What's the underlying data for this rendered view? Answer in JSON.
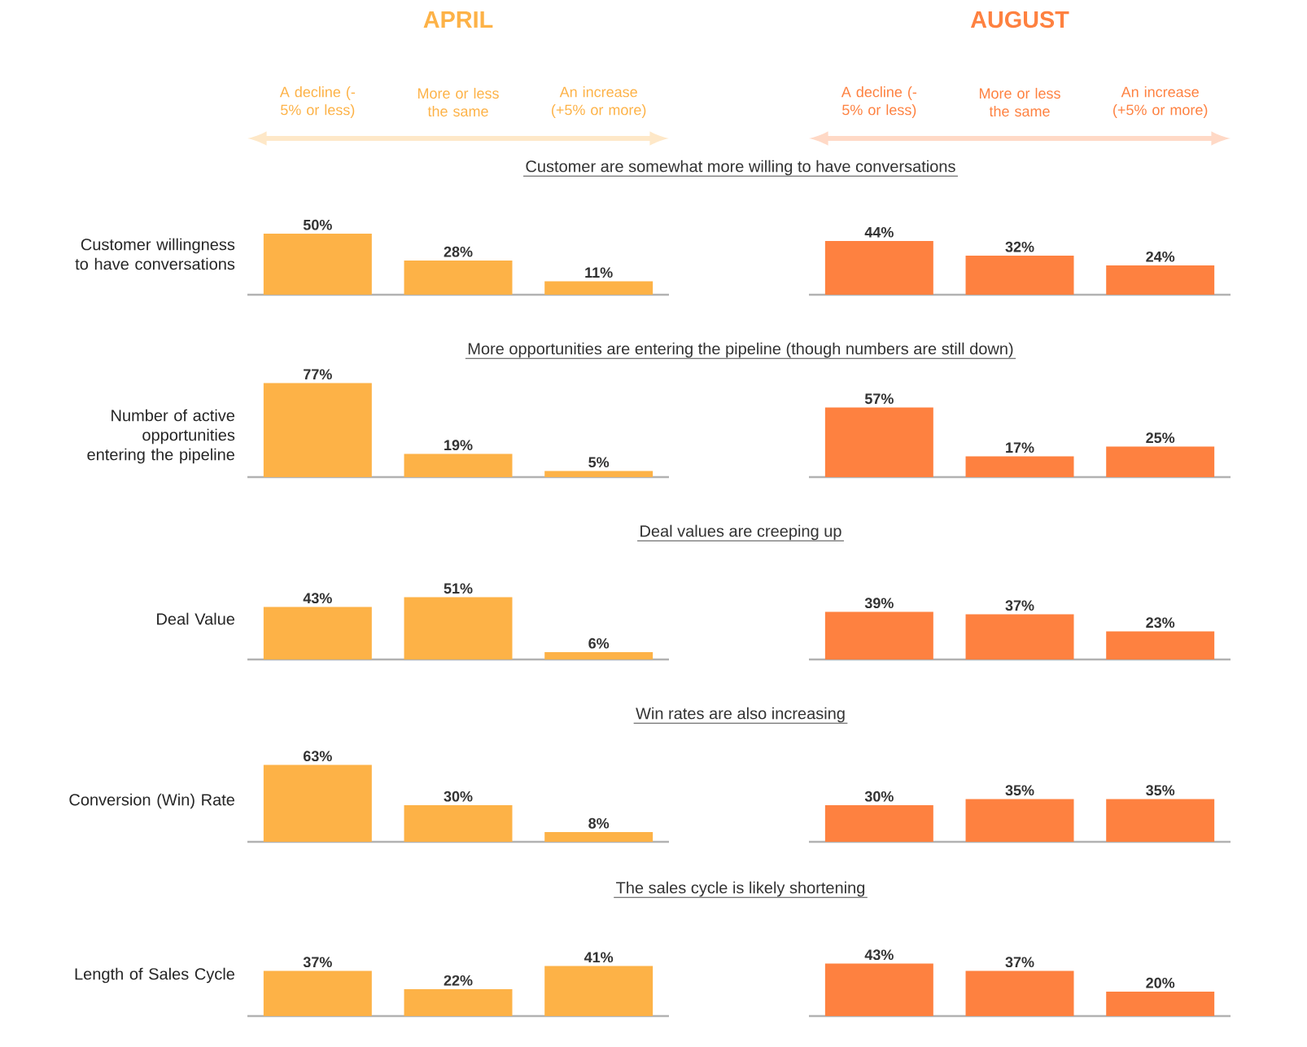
{
  "chart_data": [
    {
      "type": "bar",
      "title": "APRIL",
      "subtitle": "Customer are somewhat more willing to have conversations",
      "ylabel": "Customer willingness to have conversations",
      "categories": [
        "A decline (-5% or less)",
        "More or less the same",
        "An increase (+5% or more)"
      ],
      "values": [
        50,
        28,
        11
      ],
      "value_labels": [
        "50%",
        "28%",
        "11%"
      ],
      "color": "#fdb247",
      "tick_labels": "x"
    },
    {
      "type": "bar",
      "title": "AUGUST",
      "categories": [
        "A decline (-5% or less)",
        "More or less the same",
        "An increase (+5% or more)"
      ],
      "values": [
        44,
        32,
        24
      ],
      "value_labels": [
        "44%",
        "32%",
        "24%"
      ],
      "color": "#fe8140",
      "tick_labels": "x"
    },
    {
      "type": "bar",
      "subtitle": "More opportunities are entering the pipeline (though numbers are still down)",
      "ylabel": "Number of active opportunities entering the pipeline",
      "categories": [
        null,
        null,
        null
      ],
      "values": [
        77,
        19,
        5
      ],
      "value_labels": [
        "77%",
        "19%",
        "5%"
      ],
      "color": "#fdb247",
      "tick_labels": false
    },
    {
      "type": "bar",
      "categories": [
        null,
        null,
        null
      ],
      "values": [
        57,
        17,
        25
      ],
      "value_labels": [
        "57%",
        "17%",
        "25%"
      ],
      "color": "#fe8140",
      "tick_labels": false
    },
    {
      "type": "bar",
      "subtitle": "Deal values are creeping up",
      "ylabel": "Deal Value",
      "categories": [
        null,
        null,
        null
      ],
      "values": [
        43,
        51,
        6
      ],
      "value_labels": [
        "43%",
        "51%",
        "6%"
      ],
      "color": "#fdb247",
      "tick_labels": false
    },
    {
      "type": "bar",
      "categories": [
        null,
        null,
        null
      ],
      "values": [
        39,
        37,
        23
      ],
      "value_labels": [
        "39%",
        "37%",
        "23%"
      ],
      "color": "#fe8140",
      "tick_labels": false
    },
    {
      "type": "bar",
      "subtitle": "Win rates are also increasing",
      "ylabel": "Conversion (Win) Rate",
      "categories": [
        null,
        null,
        null
      ],
      "values": [
        63,
        30,
        8
      ],
      "value_labels": [
        "63%",
        "30%",
        "8%"
      ],
      "color": "#fdb247",
      "tick_labels": false
    },
    {
      "type": "bar",
      "categories": [
        null,
        null,
        null
      ],
      "values": [
        30,
        35,
        35
      ],
      "value_labels": [
        "30%",
        "35%",
        "35%"
      ],
      "color": "#fe8140",
      "tick_labels": false
    },
    {
      "type": "bar",
      "subtitle": "The sales cycle is likely shortening",
      "ylabel": "Length of Sales Cycle",
      "categories": [
        null,
        null,
        null
      ],
      "values": [
        37,
        22,
        41
      ],
      "value_labels": [
        "37%",
        "22%",
        "41%"
      ],
      "color": "#fdb247",
      "tick_labels": false
    },
    {
      "type": "bar",
      "categories": [
        null,
        null,
        null
      ],
      "values": [
        43,
        37,
        20
      ],
      "value_labels": [
        "43%",
        "37%",
        "20%"
      ],
      "color": "#fe8140",
      "tick_labels": false
    }
  ]
}
